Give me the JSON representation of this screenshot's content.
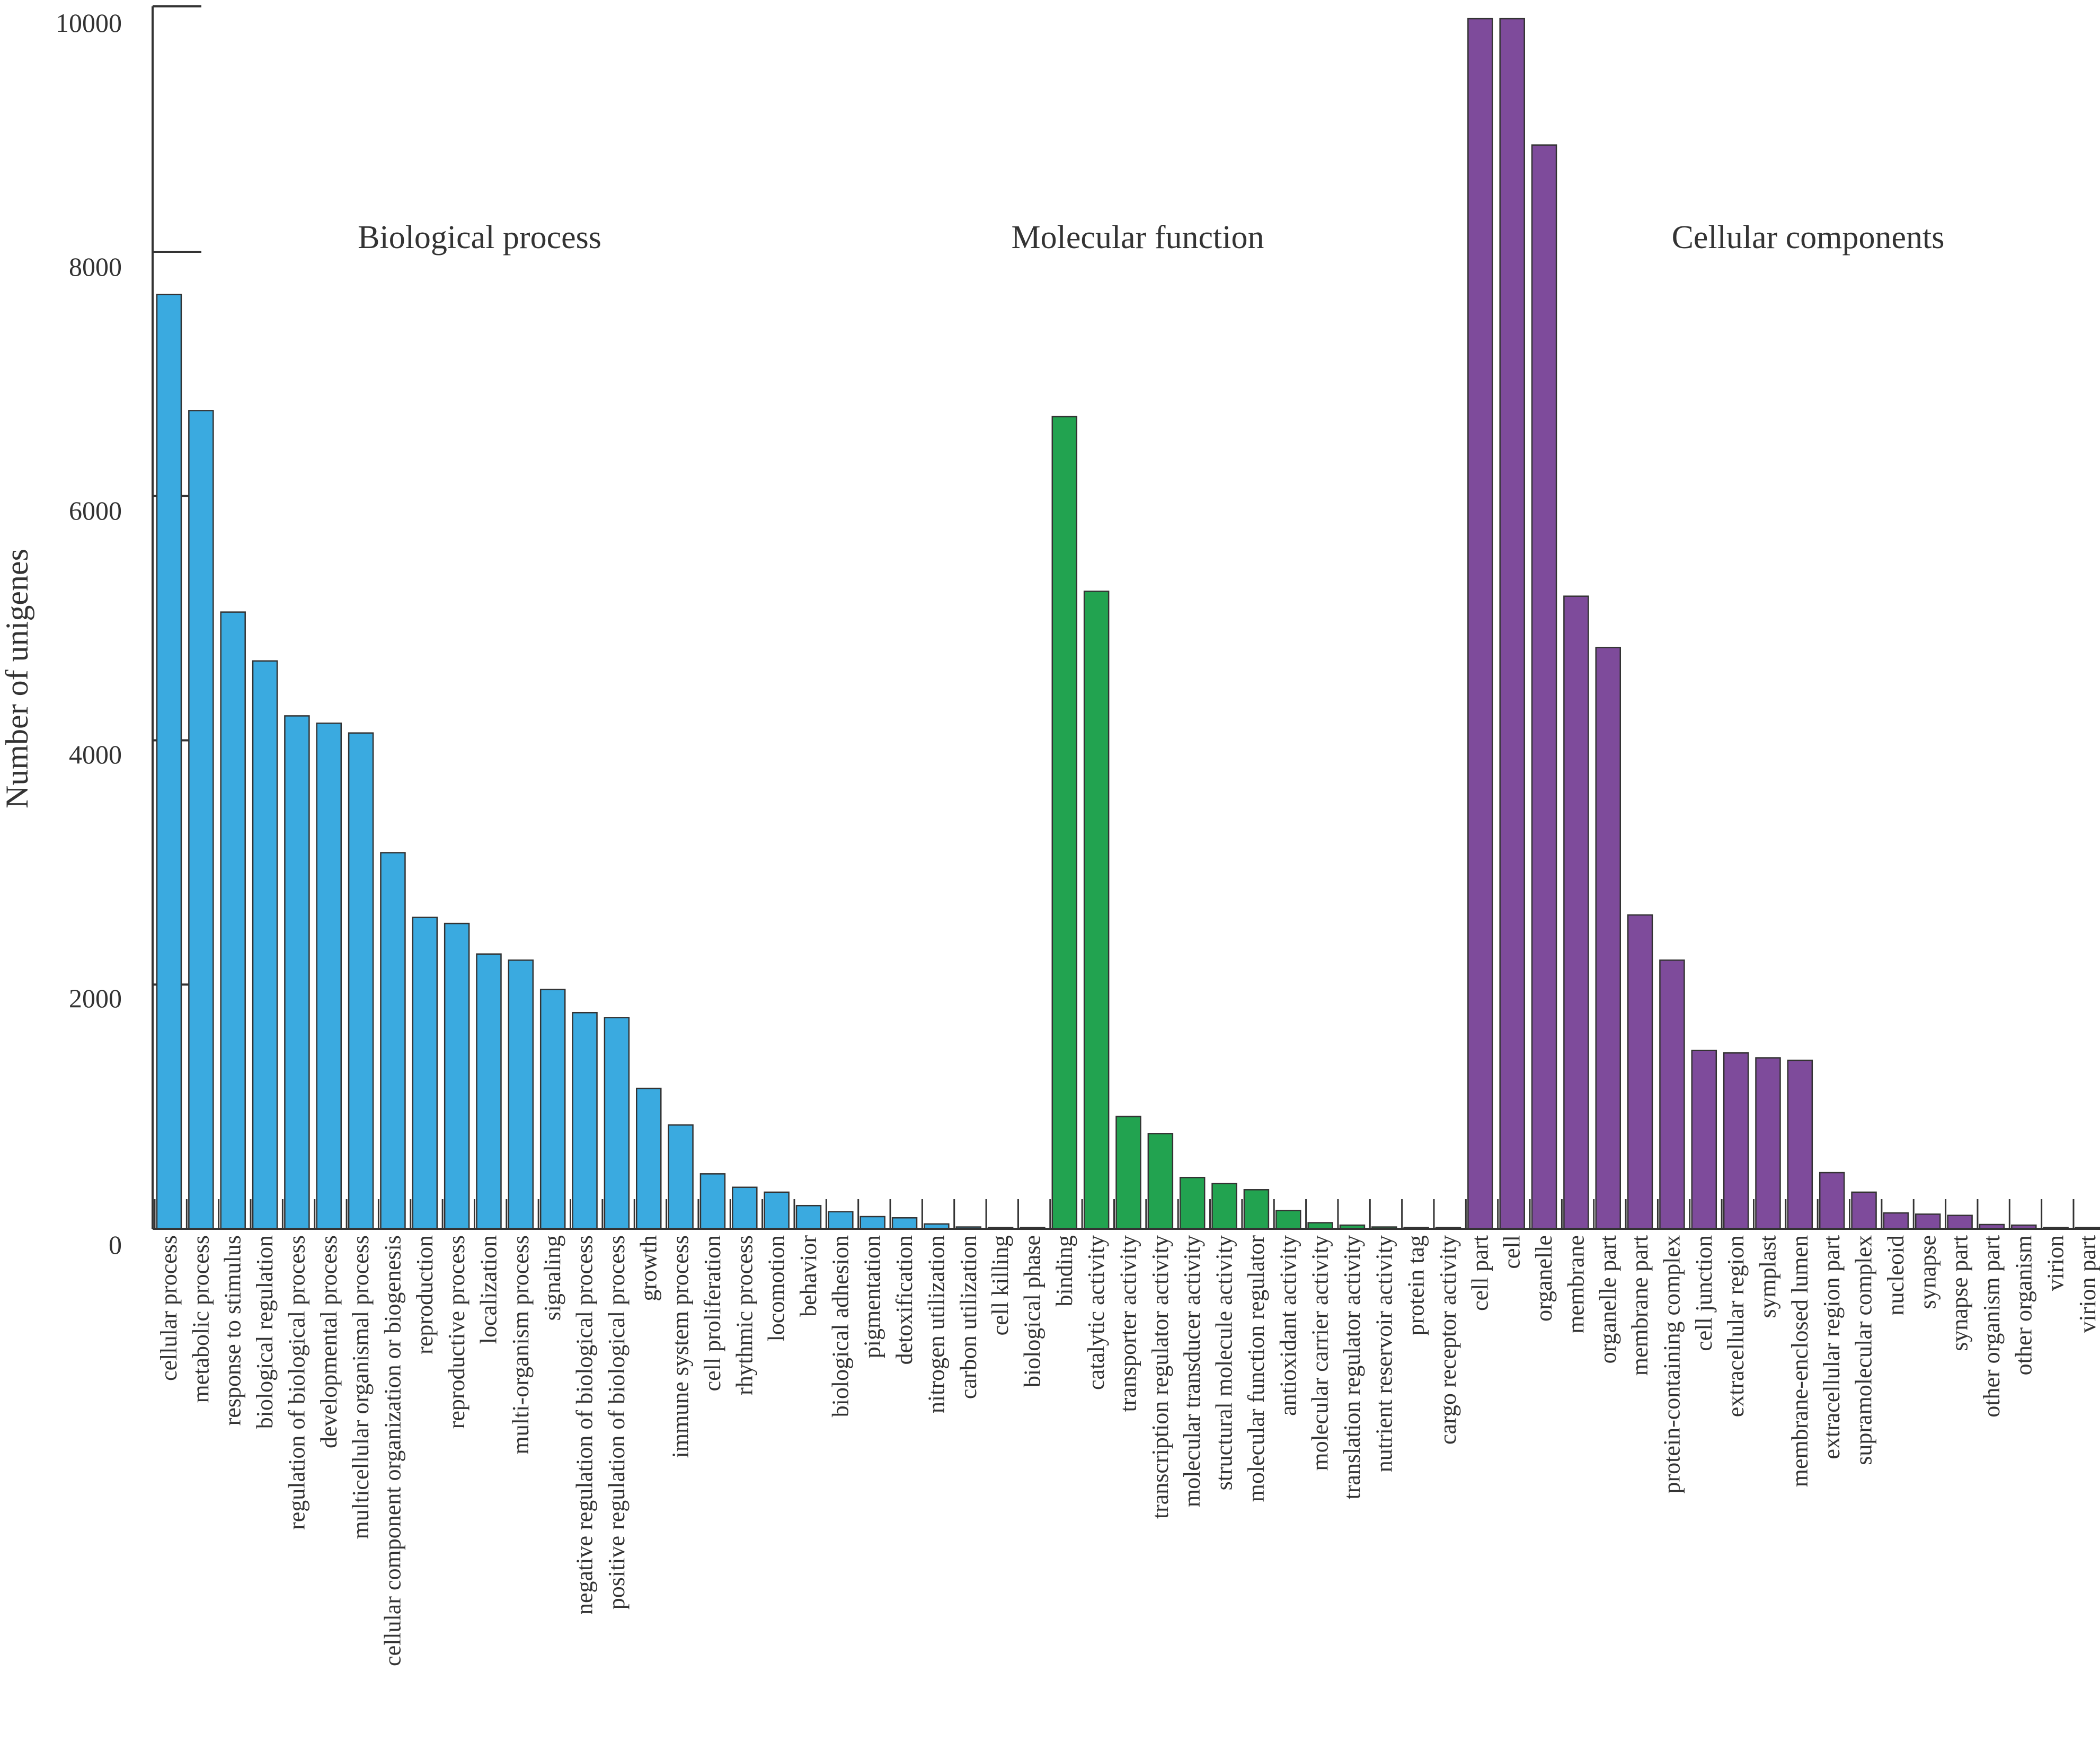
{
  "chart_data": {
    "type": "bar",
    "ylabel": "Number of unigenes",
    "xlabel": "",
    "ylim": [
      0,
      10000
    ],
    "yticks": [
      "0",
      "2000",
      "4000",
      "6000",
      "8000",
      "10000"
    ],
    "groups": [
      {
        "name": "Biological process",
        "color": "#3aaae0",
        "categories": [
          "cellular process",
          "metabolic process",
          "response to stimulus",
          "biological regulation",
          "regulation of biological process",
          "developmental process",
          "multicellular organismal process",
          "cellular component organization or biogenesis",
          "reproduction",
          "reproductive process",
          "localization",
          "multi-organism process",
          "signaling",
          "negative regulation of biological process",
          "positive regulation of biological process",
          "growth",
          "immune system process",
          "cell proliferation",
          "rhythmic process",
          "locomotion",
          "behavior",
          "biological adhesion",
          "pigmentation",
          "detoxification",
          "nitrogen utilization",
          "carbon utilization",
          "cell killing",
          "biological phase"
        ],
        "values": [
          7650,
          6700,
          5050,
          4650,
          4200,
          4140,
          4060,
          3080,
          2550,
          2500,
          2250,
          2200,
          1960,
          1770,
          1730,
          1150,
          850,
          450,
          340,
          300,
          190,
          140,
          100,
          90,
          40,
          15,
          10,
          10
        ]
      },
      {
        "name": "Molecular function",
        "color": "#22a350",
        "categories": [
          "binding",
          "catalytic activity",
          "transporter activity",
          "transcription regulator activity",
          "molecular transducer activity",
          "structural molecule activity",
          "molecular function regulator",
          "antioxidant activity",
          "molecular carrier activity",
          "translation regulator activity",
          "nutrient reservoir activity",
          "protein tag",
          "cargo receptor activity"
        ],
        "values": [
          6650,
          5220,
          920,
          780,
          420,
          370,
          320,
          150,
          50,
          30,
          15,
          10,
          10
        ]
      },
      {
        "name": "Cellular components",
        "color": "#7e4b9b",
        "categories": [
          "cell part",
          "cell",
          "organelle",
          "membrane",
          "organelle part",
          "membrane part",
          "protein-containing complex",
          "cell junction",
          "extracellular region",
          "symplast",
          "membrane-enclosed lumen",
          "extracellular region part",
          "supramolecular complex",
          "nucleoid",
          "synapse",
          "synapse part",
          "other organism part",
          "other organism",
          "virion",
          "virion part"
        ],
        "values": [
          9900,
          9900,
          8870,
          5180,
          4760,
          2570,
          2200,
          1460,
          1440,
          1400,
          1380,
          460,
          300,
          130,
          120,
          110,
          35,
          30,
          10,
          10
        ]
      }
    ]
  }
}
